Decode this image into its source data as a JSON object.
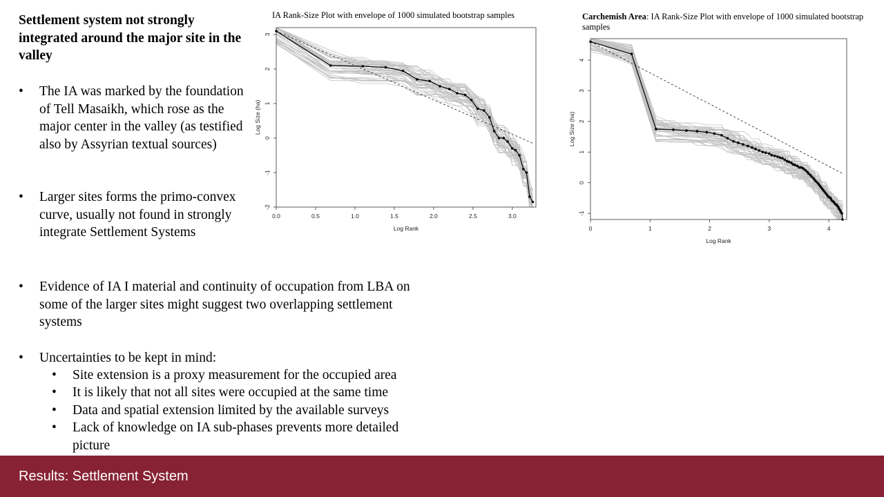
{
  "slide": {
    "heading": "Settlement system not strongly integrated around the major site in the valley",
    "bullets": [
      {
        "marker": "•",
        "text": "The IA was marked by the foundation of Tell Masaikh, which rose as the major center in the valley (as testified also by Assyrian textual sources)"
      },
      {
        "marker": "•",
        "text": "Larger sites forms the primo-convex curve, usually not found in strongly integrate Settlement Systems"
      },
      {
        "marker": "•",
        "text": "Evidence of IA I material and continuity of occupation from LBA on some of the larger sites might suggest two overlapping settlement systems"
      },
      {
        "marker": "•",
        "text": "Uncertainties to be kept in mind:"
      }
    ],
    "sub_bullets": [
      {
        "marker": "•",
        "text": "Site extension is a proxy measurement for the occupied area"
      },
      {
        "marker": "•",
        "text": "It is likely that not all sites were occupied at the same time"
      },
      {
        "marker": "•",
        "text": "Data and spatial extension limited by the available surveys"
      },
      {
        "marker": "•",
        "text": "Lack of knowledge on IA sub-phases prevents more detailed picture"
      }
    ],
    "footer_title": "Results: Settlement System",
    "footer_color": "#862233"
  },
  "chart_data": [
    {
      "type": "line",
      "title": "IA Rank-Size Plot with envelope of 1000 simulated bootstrap samples",
      "xlabel": "Log Rank",
      "ylabel": "Log Size (ha)",
      "xlim": [
        0,
        3.3
      ],
      "ylim": [
        -2,
        3.2
      ],
      "xticks": [
        "0.0",
        "0.5",
        "1.0",
        "1.5",
        "2.0",
        "2.5",
        "3.0"
      ],
      "yticks": [
        "-2",
        "-1",
        "0",
        "1",
        "2",
        "3"
      ],
      "grid": false,
      "series": [
        {
          "role": "observed",
          "style": "solid-points",
          "color": "#000000",
          "x": [
            0,
            0.69,
            1.1,
            1.39,
            1.61,
            1.79,
            1.95,
            2.08,
            2.2,
            2.3,
            2.4,
            2.48,
            2.56,
            2.64,
            2.71,
            2.77,
            2.83,
            2.89,
            2.94,
            3.0,
            3.04,
            3.09,
            3.14,
            3.18,
            3.22,
            3.26
          ],
          "y": [
            3.1,
            2.1,
            2.08,
            2.05,
            1.95,
            1.7,
            1.65,
            1.5,
            1.42,
            1.3,
            1.25,
            1.1,
            0.85,
            0.8,
            0.6,
            0.2,
            0.0,
            0.0,
            -0.1,
            -0.3,
            -0.35,
            -0.5,
            -0.9,
            -1.0,
            -1.7,
            -1.85
          ]
        },
        {
          "role": "expected",
          "style": "dashed",
          "color": "#444444",
          "x": [
            0,
            3.26
          ],
          "y": [
            3.1,
            -0.15
          ]
        }
      ],
      "envelope": {
        "samples_drawn": 40,
        "color": "#c0c0c0"
      }
    },
    {
      "type": "line",
      "title": "IA Rank-Size Plot with envelope of 1000 simulated bootstrap samples",
      "title_bold_prefix": "Carchemish Area",
      "title_separator": ": ",
      "xlabel": "Log Rank",
      "ylabel": "Log Size (ha)",
      "xlim": [
        0,
        4.3
      ],
      "ylim": [
        -1.2,
        4.7
      ],
      "xticks": [
        "0",
        "1",
        "2",
        "3",
        "4"
      ],
      "yticks": [
        "-1",
        "0",
        "1",
        "2",
        "3",
        "4"
      ],
      "grid": false,
      "series": [
        {
          "role": "observed",
          "style": "solid-points",
          "color": "#000000",
          "x": [
            0,
            0.69,
            1.1,
            1.39,
            1.61,
            1.79,
            1.95,
            2.08,
            2.2,
            2.3,
            2.4,
            2.48,
            2.56,
            2.64,
            2.71,
            2.77,
            2.83,
            2.89,
            2.94,
            3.0,
            3.04,
            3.09,
            3.14,
            3.18,
            3.22,
            3.26,
            3.3,
            3.33,
            3.37,
            3.4,
            3.43,
            3.47,
            3.5,
            3.53,
            3.56,
            3.58,
            3.61,
            3.64,
            3.66,
            3.69,
            3.71,
            3.74,
            3.76,
            3.78,
            3.81,
            3.83,
            3.85,
            3.87,
            3.89,
            3.91,
            3.93,
            3.95,
            3.97,
            3.99,
            4.01,
            4.03,
            4.04,
            4.06,
            4.08,
            4.09,
            4.11,
            4.13,
            4.14,
            4.16,
            4.17,
            4.19,
            4.2,
            4.22,
            4.23
          ],
          "y": [
            4.6,
            4.2,
            1.75,
            1.73,
            1.7,
            1.68,
            1.65,
            1.6,
            1.55,
            1.45,
            1.35,
            1.3,
            1.25,
            1.2,
            1.15,
            1.1,
            1.05,
            1.0,
            0.98,
            0.95,
            0.9,
            0.88,
            0.85,
            0.82,
            0.8,
            0.75,
            0.7,
            0.68,
            0.65,
            0.6,
            0.58,
            0.55,
            0.5,
            0.5,
            0.48,
            0.45,
            0.4,
            0.35,
            0.3,
            0.25,
            0.2,
            0.15,
            0.1,
            0.05,
            0.0,
            -0.05,
            -0.1,
            -0.15,
            -0.2,
            -0.25,
            -0.3,
            -0.35,
            -0.4,
            -0.45,
            -0.48,
            -0.5,
            -0.55,
            -0.6,
            -0.62,
            -0.65,
            -0.7,
            -0.72,
            -0.75,
            -0.8,
            -0.85,
            -0.9,
            -0.95,
            -1.0,
            -1.2
          ]
        },
        {
          "role": "expected",
          "style": "dashed",
          "color": "#444444",
          "x": [
            0,
            4.23
          ],
          "y": [
            4.6,
            0.3
          ]
        }
      ],
      "envelope": {
        "samples_drawn": 40,
        "color": "#c0c0c0"
      }
    }
  ]
}
